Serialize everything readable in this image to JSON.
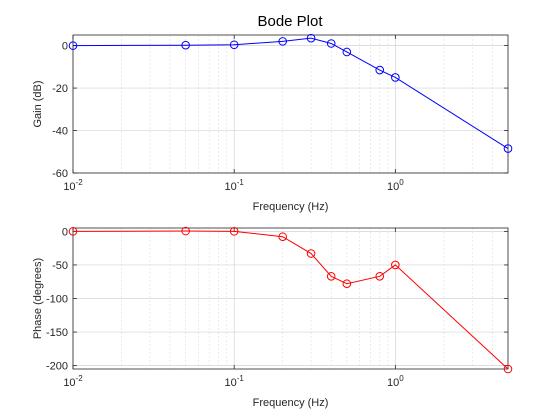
{
  "chart_data": [
    {
      "type": "line",
      "title": "Bode Plot",
      "xlabel": "Frequency (Hz)",
      "ylabel": "Gain (dB)",
      "xscale": "log",
      "xlim": [
        0.01,
        5
      ],
      "ylim": [
        -60,
        5
      ],
      "grid": true,
      "x_ticks": [
        0.01,
        0.1,
        1
      ],
      "x_tick_labels": [
        {
          "base": "10",
          "exp": "-2"
        },
        {
          "base": "10",
          "exp": "-1"
        },
        {
          "base": "10",
          "exp": "0"
        }
      ],
      "y_ticks": [
        0,
        -20,
        -40,
        -60
      ],
      "y_tick_labels": [
        "0",
        "-20",
        "-40",
        "-60"
      ],
      "color": "#0000ff",
      "marker": "circle",
      "series": [
        {
          "x": [
            0.01,
            0.05,
            0.1,
            0.2,
            0.3,
            0.4,
            0.5,
            0.8,
            1,
            5
          ],
          "y": [
            0,
            0.2,
            0.4,
            2,
            3.5,
            1,
            -3,
            -11.5,
            -15,
            -48.5
          ]
        }
      ]
    },
    {
      "type": "line",
      "title": "",
      "xlabel": "Frequency (Hz)",
      "ylabel": "Phase (degrees)",
      "xscale": "log",
      "xlim": [
        0.01,
        5
      ],
      "ylim": [
        -205,
        5
      ],
      "grid": true,
      "x_ticks": [
        0.01,
        0.1,
        1
      ],
      "x_tick_labels": [
        {
          "base": "10",
          "exp": "-2"
        },
        {
          "base": "10",
          "exp": "-1"
        },
        {
          "base": "10",
          "exp": "0"
        }
      ],
      "y_ticks": [
        0,
        -50,
        -100,
        -150,
        -200
      ],
      "y_tick_labels": [
        "0",
        "-50",
        "-100",
        "-150",
        "-200"
      ],
      "color": "#ff0000",
      "marker": "circle",
      "series": [
        {
          "x": [
            0.01,
            0.05,
            0.1,
            0.2,
            0.3,
            0.4,
            0.5,
            0.8,
            1,
            5
          ],
          "y": [
            0,
            0.5,
            0,
            -8,
            -33,
            -67,
            -78,
            -67,
            -50,
            -205
          ]
        }
      ]
    }
  ]
}
